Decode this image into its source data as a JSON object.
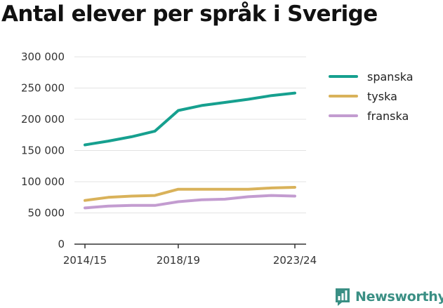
{
  "brand": {
    "name": "Newsworthy",
    "logo_icon": "bar-chart-speech-bubble-icon",
    "color": "#3a8f84"
  },
  "chart_data": {
    "type": "line",
    "title": "Antal elever per språk i Sverige",
    "xlabel": "",
    "ylabel": "",
    "x": [
      "2014/15",
      "2015/16",
      "2016/17",
      "2017/18",
      "2018/19",
      "2019/20",
      "2020/21",
      "2021/22",
      "2022/23",
      "2023/24"
    ],
    "x_ticks": [
      "2014/15",
      "2018/19",
      "2023/24"
    ],
    "y_ticks": [
      0,
      50000,
      100000,
      150000,
      200000,
      250000,
      300000
    ],
    "y_tick_labels": [
      "0",
      "50 000",
      "100 000",
      "150 000",
      "200 000",
      "250 000",
      "300 000"
    ],
    "ylim": [
      0,
      300000
    ],
    "grid": "horizontal",
    "legend_position": "right",
    "series": [
      {
        "name": "spanska",
        "color": "#16a08f",
        "values": [
          159000,
          165000,
          172000,
          181000,
          214000,
          222000,
          227000,
          232000,
          238000,
          242000
        ]
      },
      {
        "name": "tyska",
        "color": "#d9b25a",
        "values": [
          70000,
          75000,
          77000,
          78000,
          88000,
          88000,
          88000,
          88000,
          90000,
          91000
        ]
      },
      {
        "name": "franska",
        "color": "#c39cd0",
        "values": [
          58000,
          61000,
          62000,
          62000,
          68000,
          71000,
          72000,
          76000,
          78000,
          77000
        ]
      }
    ]
  }
}
